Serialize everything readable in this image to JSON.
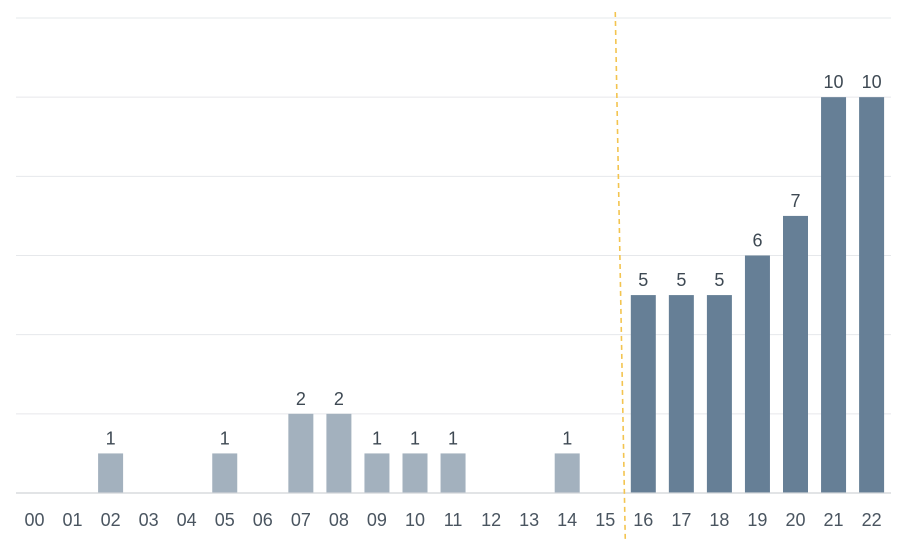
{
  "chart_data": {
    "type": "bar",
    "title": "",
    "xlabel": "",
    "ylabel": "",
    "ylim": [
      0,
      12
    ],
    "grid": true,
    "categories": [
      "00",
      "01",
      "02",
      "03",
      "04",
      "05",
      "06",
      "07",
      "08",
      "09",
      "10",
      "11",
      "12",
      "13",
      "14",
      "15",
      "16",
      "17",
      "18",
      "19",
      "20",
      "21",
      "22"
    ],
    "values": [
      0,
      0,
      1,
      0,
      0,
      1,
      0,
      2,
      2,
      1,
      1,
      1,
      0,
      0,
      1,
      0,
      5,
      5,
      5,
      6,
      7,
      10,
      10
    ],
    "divider_after_category": "15",
    "colors": {
      "before_divider": "#a3b1be",
      "after_divider": "#667f96",
      "divider": "#f3c44f"
    }
  }
}
